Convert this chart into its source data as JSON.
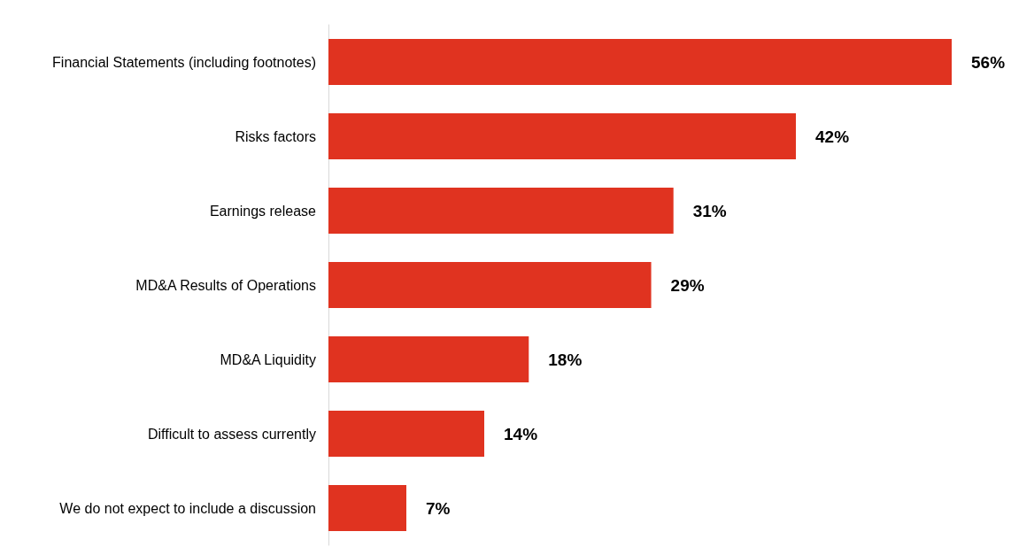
{
  "chart_data": {
    "type": "bar",
    "orientation": "horizontal",
    "categories": [
      "Financial Statements (including footnotes)",
      "Risks factors",
      "Earnings release",
      "MD&A Results of Operations",
      "MD&A Liquidity",
      "Difficult to assess currently",
      "We do not expect to include a discussion"
    ],
    "values": [
      56,
      42,
      31,
      29,
      18,
      14,
      7
    ],
    "value_labels": [
      "56%",
      "42%",
      "31%",
      "29%",
      "18%",
      "14%",
      "7%"
    ],
    "color": "#e03320"
  }
}
